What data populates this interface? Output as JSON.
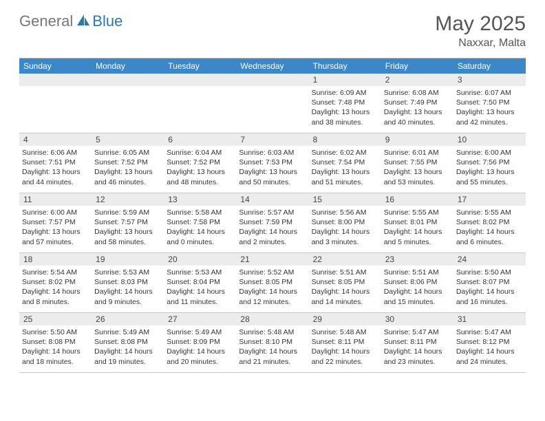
{
  "logo": {
    "general": "General",
    "blue": "Blue"
  },
  "title": "May 2025",
  "location": "Naxxar, Malta",
  "weekdays": [
    "Sunday",
    "Monday",
    "Tuesday",
    "Wednesday",
    "Thursday",
    "Friday",
    "Saturday"
  ],
  "colors": {
    "header_bar": "#3b87c8",
    "daynum_bg": "#ececec",
    "border": "#c8c8c8",
    "logo_blue": "#2a7ab0",
    "logo_gray": "#777777",
    "text": "#333333"
  },
  "weeks": [
    [
      {
        "n": "",
        "sr": "",
        "ss": "",
        "dl1": "",
        "dl2": ""
      },
      {
        "n": "",
        "sr": "",
        "ss": "",
        "dl1": "",
        "dl2": ""
      },
      {
        "n": "",
        "sr": "",
        "ss": "",
        "dl1": "",
        "dl2": ""
      },
      {
        "n": "",
        "sr": "",
        "ss": "",
        "dl1": "",
        "dl2": ""
      },
      {
        "n": "1",
        "sr": "Sunrise: 6:09 AM",
        "ss": "Sunset: 7:48 PM",
        "dl1": "Daylight: 13 hours",
        "dl2": "and 38 minutes."
      },
      {
        "n": "2",
        "sr": "Sunrise: 6:08 AM",
        "ss": "Sunset: 7:49 PM",
        "dl1": "Daylight: 13 hours",
        "dl2": "and 40 minutes."
      },
      {
        "n": "3",
        "sr": "Sunrise: 6:07 AM",
        "ss": "Sunset: 7:50 PM",
        "dl1": "Daylight: 13 hours",
        "dl2": "and 42 minutes."
      }
    ],
    [
      {
        "n": "4",
        "sr": "Sunrise: 6:06 AM",
        "ss": "Sunset: 7:51 PM",
        "dl1": "Daylight: 13 hours",
        "dl2": "and 44 minutes."
      },
      {
        "n": "5",
        "sr": "Sunrise: 6:05 AM",
        "ss": "Sunset: 7:52 PM",
        "dl1": "Daylight: 13 hours",
        "dl2": "and 46 minutes."
      },
      {
        "n": "6",
        "sr": "Sunrise: 6:04 AM",
        "ss": "Sunset: 7:52 PM",
        "dl1": "Daylight: 13 hours",
        "dl2": "and 48 minutes."
      },
      {
        "n": "7",
        "sr": "Sunrise: 6:03 AM",
        "ss": "Sunset: 7:53 PM",
        "dl1": "Daylight: 13 hours",
        "dl2": "and 50 minutes."
      },
      {
        "n": "8",
        "sr": "Sunrise: 6:02 AM",
        "ss": "Sunset: 7:54 PM",
        "dl1": "Daylight: 13 hours",
        "dl2": "and 51 minutes."
      },
      {
        "n": "9",
        "sr": "Sunrise: 6:01 AM",
        "ss": "Sunset: 7:55 PM",
        "dl1": "Daylight: 13 hours",
        "dl2": "and 53 minutes."
      },
      {
        "n": "10",
        "sr": "Sunrise: 6:00 AM",
        "ss": "Sunset: 7:56 PM",
        "dl1": "Daylight: 13 hours",
        "dl2": "and 55 minutes."
      }
    ],
    [
      {
        "n": "11",
        "sr": "Sunrise: 6:00 AM",
        "ss": "Sunset: 7:57 PM",
        "dl1": "Daylight: 13 hours",
        "dl2": "and 57 minutes."
      },
      {
        "n": "12",
        "sr": "Sunrise: 5:59 AM",
        "ss": "Sunset: 7:57 PM",
        "dl1": "Daylight: 13 hours",
        "dl2": "and 58 minutes."
      },
      {
        "n": "13",
        "sr": "Sunrise: 5:58 AM",
        "ss": "Sunset: 7:58 PM",
        "dl1": "Daylight: 14 hours",
        "dl2": "and 0 minutes."
      },
      {
        "n": "14",
        "sr": "Sunrise: 5:57 AM",
        "ss": "Sunset: 7:59 PM",
        "dl1": "Daylight: 14 hours",
        "dl2": "and 2 minutes."
      },
      {
        "n": "15",
        "sr": "Sunrise: 5:56 AM",
        "ss": "Sunset: 8:00 PM",
        "dl1": "Daylight: 14 hours",
        "dl2": "and 3 minutes."
      },
      {
        "n": "16",
        "sr": "Sunrise: 5:55 AM",
        "ss": "Sunset: 8:01 PM",
        "dl1": "Daylight: 14 hours",
        "dl2": "and 5 minutes."
      },
      {
        "n": "17",
        "sr": "Sunrise: 5:55 AM",
        "ss": "Sunset: 8:02 PM",
        "dl1": "Daylight: 14 hours",
        "dl2": "and 6 minutes."
      }
    ],
    [
      {
        "n": "18",
        "sr": "Sunrise: 5:54 AM",
        "ss": "Sunset: 8:02 PM",
        "dl1": "Daylight: 14 hours",
        "dl2": "and 8 minutes."
      },
      {
        "n": "19",
        "sr": "Sunrise: 5:53 AM",
        "ss": "Sunset: 8:03 PM",
        "dl1": "Daylight: 14 hours",
        "dl2": "and 9 minutes."
      },
      {
        "n": "20",
        "sr": "Sunrise: 5:53 AM",
        "ss": "Sunset: 8:04 PM",
        "dl1": "Daylight: 14 hours",
        "dl2": "and 11 minutes."
      },
      {
        "n": "21",
        "sr": "Sunrise: 5:52 AM",
        "ss": "Sunset: 8:05 PM",
        "dl1": "Daylight: 14 hours",
        "dl2": "and 12 minutes."
      },
      {
        "n": "22",
        "sr": "Sunrise: 5:51 AM",
        "ss": "Sunset: 8:05 PM",
        "dl1": "Daylight: 14 hours",
        "dl2": "and 14 minutes."
      },
      {
        "n": "23",
        "sr": "Sunrise: 5:51 AM",
        "ss": "Sunset: 8:06 PM",
        "dl1": "Daylight: 14 hours",
        "dl2": "and 15 minutes."
      },
      {
        "n": "24",
        "sr": "Sunrise: 5:50 AM",
        "ss": "Sunset: 8:07 PM",
        "dl1": "Daylight: 14 hours",
        "dl2": "and 16 minutes."
      }
    ],
    [
      {
        "n": "25",
        "sr": "Sunrise: 5:50 AM",
        "ss": "Sunset: 8:08 PM",
        "dl1": "Daylight: 14 hours",
        "dl2": "and 18 minutes."
      },
      {
        "n": "26",
        "sr": "Sunrise: 5:49 AM",
        "ss": "Sunset: 8:08 PM",
        "dl1": "Daylight: 14 hours",
        "dl2": "and 19 minutes."
      },
      {
        "n": "27",
        "sr": "Sunrise: 5:49 AM",
        "ss": "Sunset: 8:09 PM",
        "dl1": "Daylight: 14 hours",
        "dl2": "and 20 minutes."
      },
      {
        "n": "28",
        "sr": "Sunrise: 5:48 AM",
        "ss": "Sunset: 8:10 PM",
        "dl1": "Daylight: 14 hours",
        "dl2": "and 21 minutes."
      },
      {
        "n": "29",
        "sr": "Sunrise: 5:48 AM",
        "ss": "Sunset: 8:11 PM",
        "dl1": "Daylight: 14 hours",
        "dl2": "and 22 minutes."
      },
      {
        "n": "30",
        "sr": "Sunrise: 5:47 AM",
        "ss": "Sunset: 8:11 PM",
        "dl1": "Daylight: 14 hours",
        "dl2": "and 23 minutes."
      },
      {
        "n": "31",
        "sr": "Sunrise: 5:47 AM",
        "ss": "Sunset: 8:12 PM",
        "dl1": "Daylight: 14 hours",
        "dl2": "and 24 minutes."
      }
    ]
  ]
}
